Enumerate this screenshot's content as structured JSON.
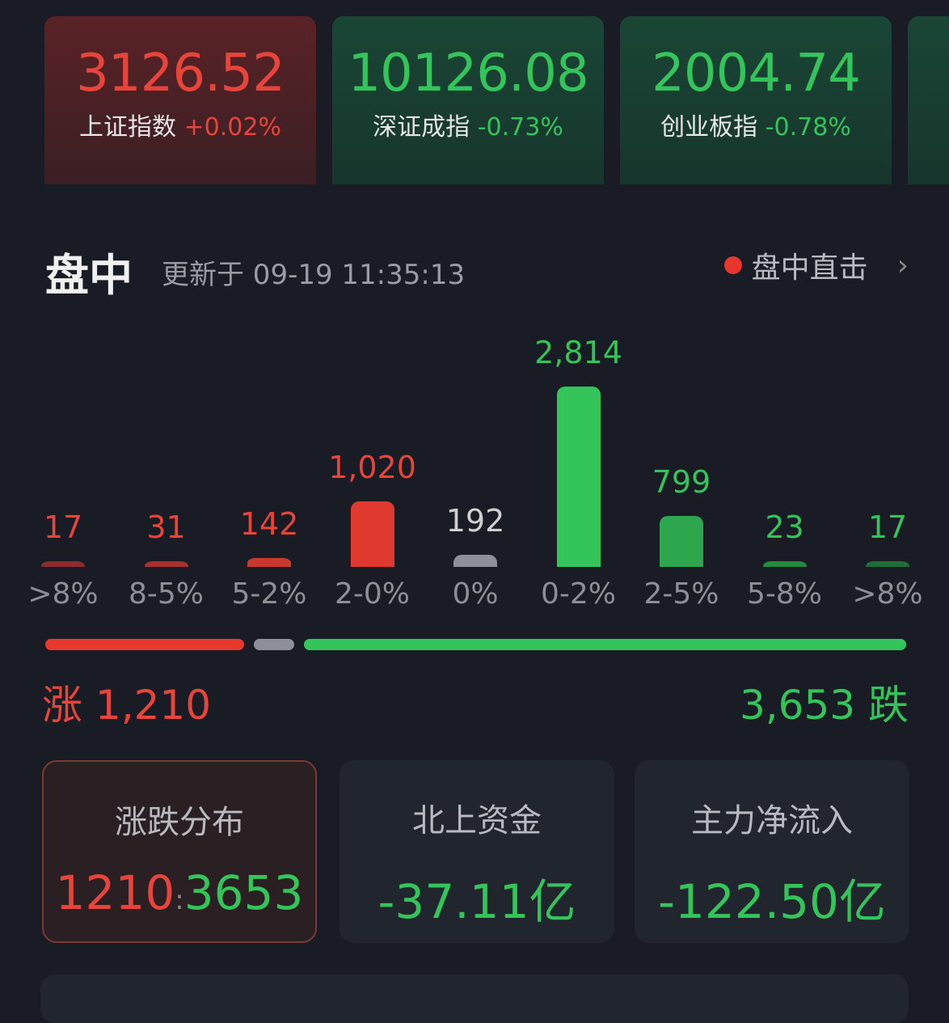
{
  "indices": [
    {
      "value": "3126.52",
      "name": "上证指数",
      "change": "+0.02%",
      "trend": "up"
    },
    {
      "value": "10126.08",
      "name": "深证成指",
      "change": "-0.73%",
      "trend": "down"
    },
    {
      "value": "2004.74",
      "name": "创业板指",
      "change": "-0.78%",
      "trend": "down"
    }
  ],
  "section": {
    "title": "盘中",
    "updated": "更新于 09-19 11:35:13",
    "live_label": "盘中直击"
  },
  "chart_data": {
    "type": "bar",
    "categories": [
      ">8%",
      "8-5%",
      "5-2%",
      "2-0%",
      "0%",
      "0-2%",
      "2-5%",
      "5-8%",
      ">8%"
    ],
    "values": [
      17,
      31,
      142,
      1020,
      192,
      2814,
      799,
      23,
      17
    ],
    "labels": [
      "17",
      "31",
      "142",
      "1,020",
      "192",
      "2,814",
      "799",
      "23",
      "17"
    ],
    "colors": [
      "#8c2c2c",
      "#a8302e",
      "#c9382f",
      "#e0392f",
      "#8e9099",
      "#33c45a",
      "#2ea64e",
      "#248a40",
      "#1e6e35"
    ],
    "label_colors": [
      "#e8443a",
      "#e8443a",
      "#e8443a",
      "#e8443a",
      "#d0d0d0",
      "#33c45a",
      "#33c45a",
      "#33c45a",
      "#33c45a"
    ]
  },
  "summary": {
    "up_label": "涨",
    "up_count": "1,210",
    "down_count": "3,653",
    "down_label": "跌",
    "flat": 192
  },
  "cards": [
    {
      "title": "涨跌分布",
      "up": "1210",
      "sep": ":",
      "down": "3653"
    },
    {
      "title": "北上资金",
      "value": "-37.11亿"
    },
    {
      "title": "主力净流入",
      "value": "-122.50亿"
    }
  ],
  "colors": {
    "up": "#e8443a",
    "down": "#33c45a",
    "background": "#191c24"
  }
}
